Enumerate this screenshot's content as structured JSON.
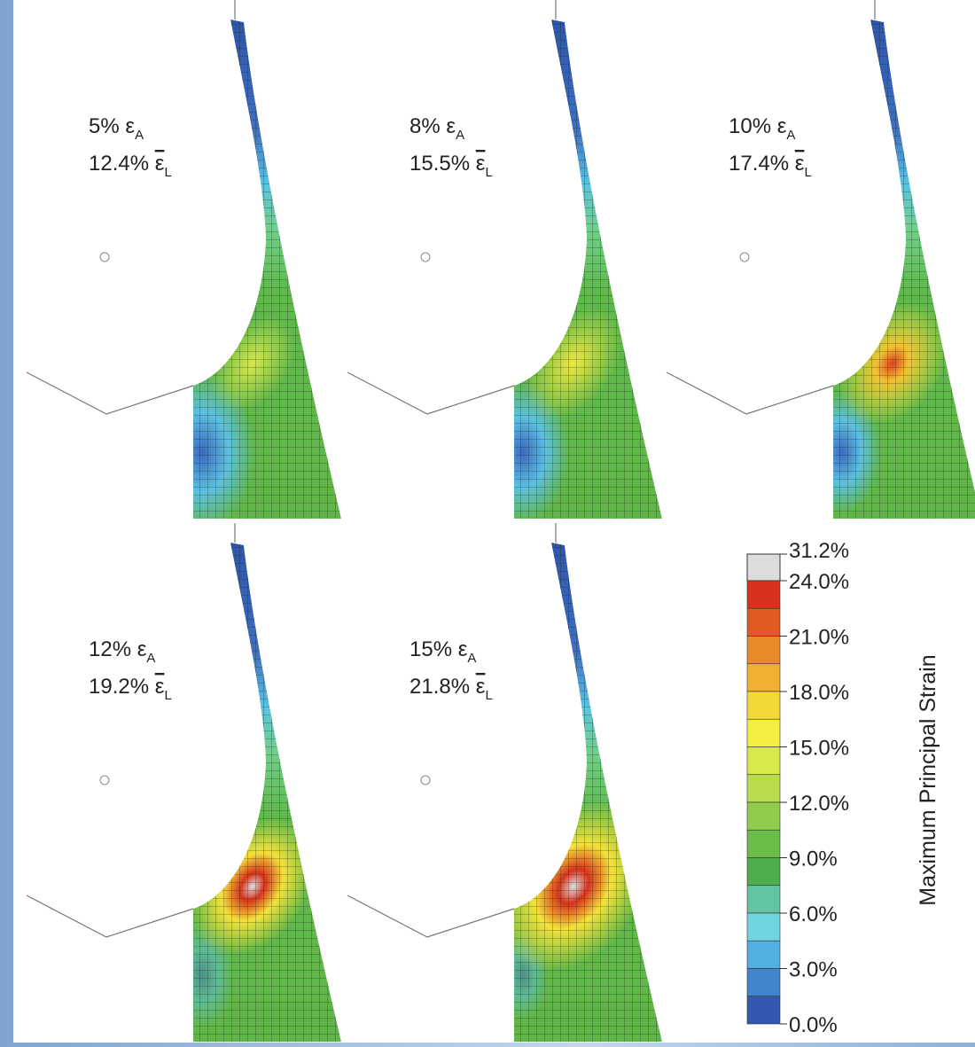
{
  "symbols": {
    "epsilon": "ε",
    "sub_a": "A",
    "sub_l": "L"
  },
  "panels": [
    {
      "applied": "5%",
      "local": "12.4%"
    },
    {
      "applied": "8%",
      "local": "15.5%"
    },
    {
      "applied": "10%",
      "local": "17.4%"
    },
    {
      "applied": "12%",
      "local": "19.2%"
    },
    {
      "applied": "15%",
      "local": "21.8%"
    }
  ],
  "colorbar": {
    "title": "Maximum Principal Strain",
    "ticks": [
      "31.2%",
      "24.0%",
      "21.0%",
      "18.0%",
      "15.0%",
      "12.0%",
      "9.0%",
      "6.0%",
      "3.0%",
      "0.0%"
    ]
  }
}
